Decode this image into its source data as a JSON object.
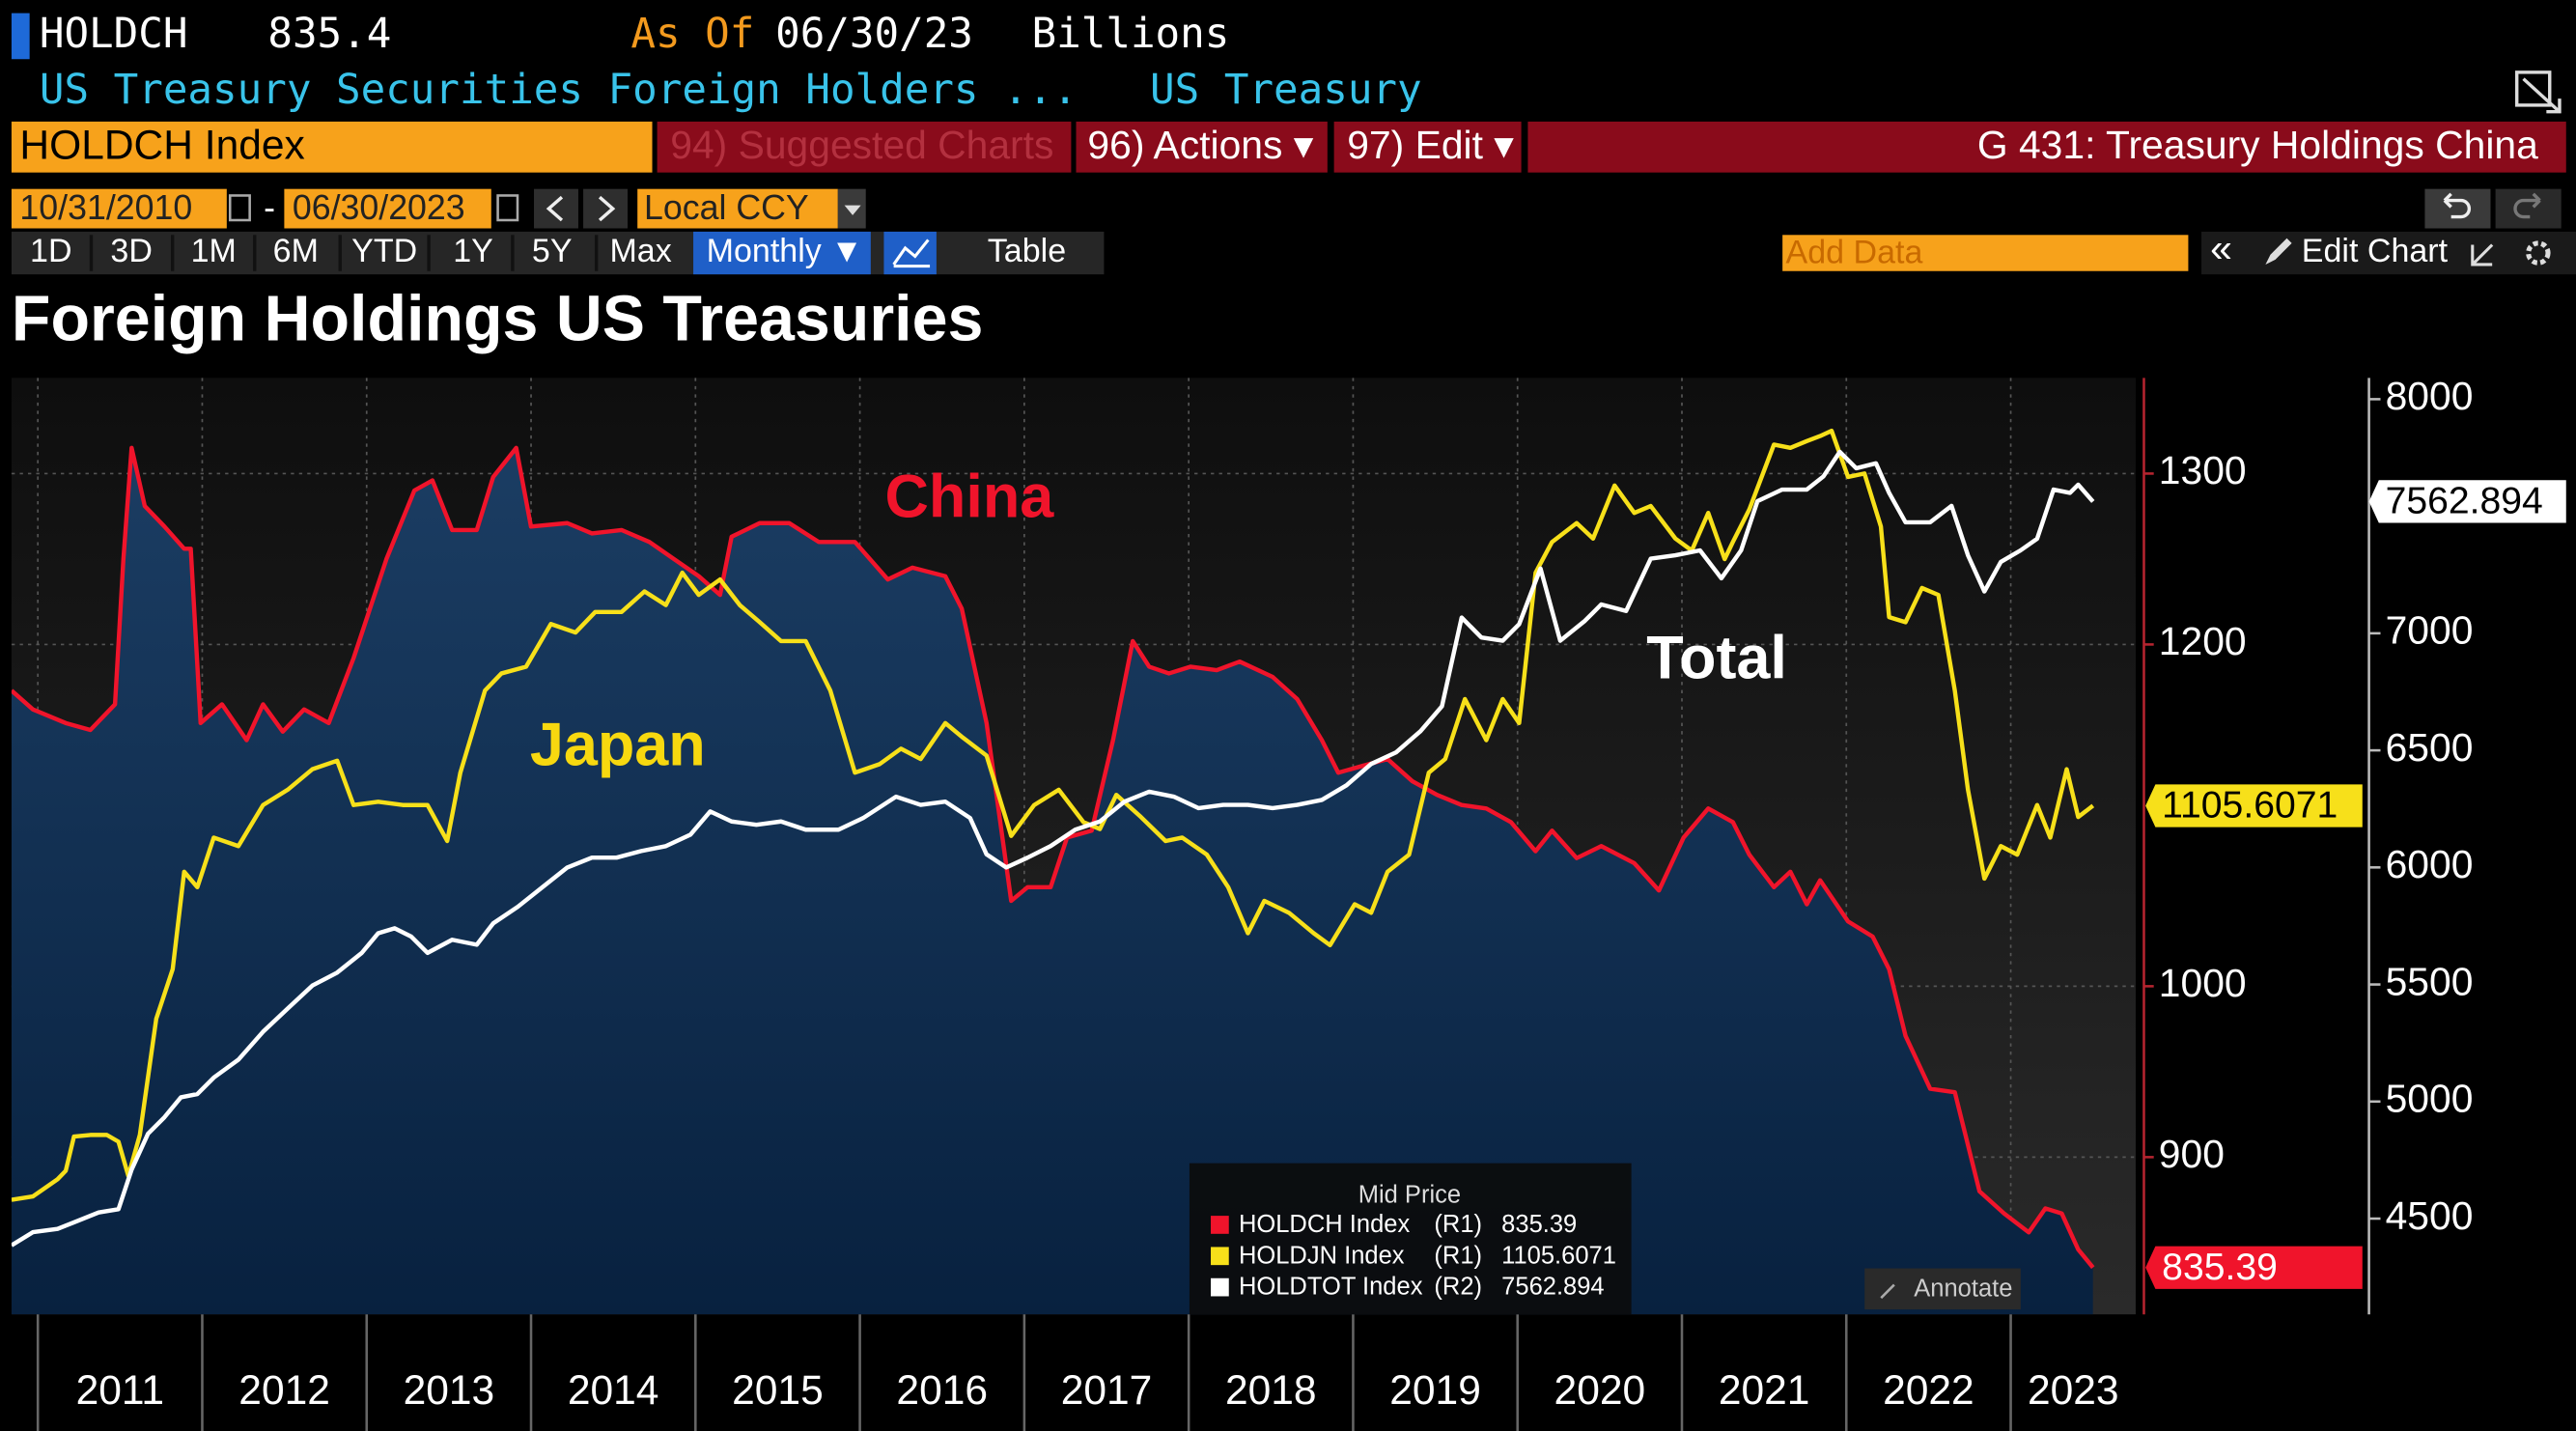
{
  "header": {
    "ticker": "HOLDCH",
    "price": "835.4",
    "as_of_label": "As Of",
    "as_of_date": "06/30/23",
    "units": "Billions",
    "description": "US Treasury Securities Foreign Holders ...",
    "source": "US Treasury"
  },
  "menu": {
    "security": "HOLDCH Index",
    "suggested": "94) Suggested Charts",
    "actions": "96) Actions ▾",
    "edit": "97) Edit ▾",
    "page_title": "G 431: Treasury Holdings China"
  },
  "controls": {
    "start_date": "10/31/2010",
    "date_separator": "-",
    "end_date": "06/30/2023",
    "currency": "Local CCY",
    "ranges": [
      "1D",
      "3D",
      "1M",
      "6M",
      "YTD",
      "1Y",
      "5Y",
      "Max"
    ],
    "frequency": "Monthly ▼",
    "table": "Table",
    "add_data_placeholder": "Add Data",
    "collapse": "«",
    "edit_chart": "Edit Chart"
  },
  "chart_data": {
    "type": "line",
    "title": "Foreign Holdings US Treasuries",
    "annotations": [
      "China",
      "Japan",
      "Total"
    ],
    "legend_title": "Mid Price",
    "annotate": "Annotate",
    "xlim": [
      2010.84,
      2023.76
    ],
    "xticks": [
      2011,
      2012,
      2013,
      2014,
      2015,
      2016,
      2017,
      2018,
      2019,
      2020,
      2021,
      2022,
      2023
    ],
    "ylim": [
      808,
      1356
    ],
    "yticks": [
      900,
      1000,
      1200,
      1300
    ],
    "y2lim": [
      4091,
      8091
    ],
    "y2ticks": [
      4500,
      5000,
      5500,
      6000,
      6500,
      7000,
      8000
    ],
    "grid": true,
    "series": [
      {
        "name": "HOLDCH Index",
        "axis_label": "(R1)",
        "color": "#f0142b",
        "axis": "y",
        "area": true,
        "x": [
          2010.84,
          2010.97,
          2011.17,
          2011.32,
          2011.47,
          2011.52,
          2011.57,
          2011.65,
          2011.77,
          2011.89,
          2011.93,
          2011.99,
          2012.12,
          2012.27,
          2012.37,
          2012.49,
          2012.62,
          2012.77,
          2012.92,
          2013.12,
          2013.29,
          2013.4,
          2013.52,
          2013.67,
          2013.77,
          2013.91,
          2014.0,
          2014.22,
          2014.37,
          2014.55,
          2014.72,
          2014.87,
          2015.02,
          2015.15,
          2015.22,
          2015.39,
          2015.57,
          2015.75,
          2015.97,
          2016.17,
          2016.32,
          2016.52,
          2016.62,
          2016.77,
          2016.92,
          2017.02,
          2017.16,
          2017.26,
          2017.41,
          2017.54,
          2017.66,
          2017.76,
          2017.88,
          2018.01,
          2018.17,
          2018.31,
          2018.51,
          2018.66,
          2018.81,
          2018.91,
          2019.06,
          2019.21,
          2019.36,
          2019.51,
          2019.66,
          2019.81,
          2019.96,
          2020.11,
          2020.21,
          2020.36,
          2020.51,
          2020.71,
          2020.86,
          2021.01,
          2021.16,
          2021.31,
          2021.41,
          2021.56,
          2021.66,
          2021.76,
          2021.84,
          2022.01,
          2022.16,
          2022.26,
          2022.36,
          2022.51,
          2022.66,
          2022.81,
          2022.96,
          2023.11,
          2023.21,
          2023.31,
          2023.41,
          2023.5
        ],
        "values": [
          1173,
          1162,
          1154,
          1150,
          1165,
          1250,
          1315,
          1281,
          1269,
          1256,
          1256,
          1154,
          1165,
          1144,
          1165,
          1149,
          1162,
          1154,
          1192,
          1250,
          1290,
          1296,
          1267,
          1267,
          1298,
          1315,
          1269,
          1271,
          1265,
          1267,
          1260,
          1250,
          1240,
          1229,
          1263,
          1271,
          1271,
          1260,
          1260,
          1238,
          1245,
          1240,
          1221,
          1154,
          1050,
          1058,
          1058,
          1087,
          1091,
          1144,
          1202,
          1187,
          1183,
          1187,
          1185,
          1190,
          1181,
          1168,
          1144,
          1125,
          1129,
          1133,
          1120,
          1112,
          1106,
          1104,
          1096,
          1079,
          1091,
          1075,
          1082,
          1072,
          1056,
          1087,
          1104,
          1096,
          1077,
          1058,
          1067,
          1048,
          1062,
          1038,
          1029,
          1010,
          971,
          940,
          938,
          880,
          867,
          856,
          870,
          867,
          846,
          835.39
        ]
      },
      {
        "name": "HOLDJN Index",
        "axis_label": "(R1)",
        "color": "#f7e01a",
        "axis": "y",
        "x": [
          2010.84,
          2010.97,
          2011.12,
          2011.17,
          2011.22,
          2011.32,
          2011.42,
          2011.49,
          2011.55,
          2011.62,
          2011.72,
          2011.82,
          2011.89,
          2011.97,
          2012.07,
          2012.22,
          2012.37,
          2012.52,
          2012.67,
          2012.82,
          2012.92,
          2013.07,
          2013.22,
          2013.37,
          2013.49,
          2013.57,
          2013.72,
          2013.82,
          2013.97,
          2014.12,
          2014.27,
          2014.39,
          2014.55,
          2014.69,
          2014.82,
          2014.92,
          2015.02,
          2015.15,
          2015.27,
          2015.39,
          2015.52,
          2015.67,
          2015.82,
          2015.97,
          2016.12,
          2016.25,
          2016.37,
          2016.52,
          2016.62,
          2016.77,
          2016.92,
          2017.06,
          2017.21,
          2017.36,
          2017.46,
          2017.56,
          2017.71,
          2017.86,
          2017.96,
          2018.11,
          2018.24,
          2018.36,
          2018.46,
          2018.61,
          2018.76,
          2018.86,
          2019.01,
          2019.11,
          2019.21,
          2019.34,
          2019.46,
          2019.56,
          2019.68,
          2019.81,
          2019.91,
          2020.01,
          2020.11,
          2020.21,
          2020.36,
          2020.46,
          2020.59,
          2020.71,
          2020.81,
          2020.96,
          2021.06,
          2021.16,
          2021.26,
          2021.31,
          2021.41,
          2021.56,
          2021.66,
          2021.76,
          2021.84,
          2021.91,
          2022.01,
          2022.11,
          2022.21,
          2022.26,
          2022.36,
          2022.46,
          2022.56,
          2022.66,
          2022.74,
          2022.84,
          2022.94,
          2023.04,
          2023.16,
          2023.24,
          2023.34,
          2023.41,
          2023.5
        ],
        "values": [
          875,
          877,
          887,
          892,
          912,
          913,
          913,
          909,
          889,
          913,
          981,
          1010,
          1067,
          1058,
          1087,
          1082,
          1106,
          1115,
          1127,
          1132,
          1106,
          1108,
          1106,
          1106,
          1085,
          1125,
          1173,
          1183,
          1187,
          1212,
          1207,
          1219,
          1219,
          1231,
          1223,
          1242,
          1229,
          1238,
          1223,
          1213,
          1202,
          1202,
          1173,
          1125,
          1130,
          1139,
          1133,
          1154,
          1146,
          1135,
          1088,
          1106,
          1115,
          1096,
          1092,
          1112,
          1099,
          1085,
          1087,
          1077,
          1058,
          1031,
          1050,
          1043,
          1031,
          1024,
          1048,
          1043,
          1067,
          1077,
          1125,
          1133,
          1168,
          1144,
          1168,
          1154,
          1242,
          1260,
          1271,
          1262,
          1293,
          1277,
          1281,
          1262,
          1255,
          1277,
          1250,
          1260,
          1279,
          1317,
          1315,
          1319,
          1322,
          1325,
          1298,
          1300,
          1269,
          1216,
          1213,
          1233,
          1229,
          1173,
          1115,
          1063,
          1082,
          1077,
          1106,
          1087,
          1127,
          1099,
          1105.6071
        ]
      },
      {
        "name": "HOLDTOT Index",
        "axis_label": "(R2)",
        "color": "#ffffff",
        "axis": "y2",
        "x": [
          2010.84,
          2010.97,
          2011.12,
          2011.22,
          2011.37,
          2011.49,
          2011.57,
          2011.67,
          2011.77,
          2011.87,
          2011.97,
          2012.07,
          2012.22,
          2012.37,
          2012.52,
          2012.67,
          2012.82,
          2012.97,
          2013.07,
          2013.17,
          2013.27,
          2013.37,
          2013.52,
          2013.67,
          2013.77,
          2013.92,
          2014.07,
          2014.22,
          2014.37,
          2014.52,
          2014.67,
          2014.82,
          2014.97,
          2015.09,
          2015.22,
          2015.37,
          2015.52,
          2015.67,
          2015.87,
          2016.02,
          2016.22,
          2016.37,
          2016.52,
          2016.67,
          2016.77,
          2016.89,
          2017.02,
          2017.16,
          2017.31,
          2017.46,
          2017.61,
          2017.76,
          2017.91,
          2018.06,
          2018.21,
          2018.36,
          2018.51,
          2018.66,
          2018.81,
          2018.96,
          2019.11,
          2019.26,
          2019.41,
          2019.54,
          2019.66,
          2019.78,
          2019.91,
          2020.01,
          2020.14,
          2020.26,
          2020.41,
          2020.51,
          2020.66,
          2020.81,
          2020.96,
          2021.11,
          2021.24,
          2021.36,
          2021.46,
          2021.61,
          2021.76,
          2021.86,
          2021.96,
          2022.06,
          2022.18,
          2022.26,
          2022.36,
          2022.51,
          2022.64,
          2022.74,
          2022.84,
          2022.94,
          2023.06,
          2023.16,
          2023.26,
          2023.36,
          2023.41,
          2023.5
        ],
        "values": [
          4386,
          4442,
          4456,
          4484,
          4526,
          4540,
          4709,
          4863,
          4933,
          5018,
          5032,
          5102,
          5179,
          5298,
          5397,
          5495,
          5551,
          5635,
          5719,
          5740,
          5705,
          5635,
          5691,
          5670,
          5761,
          5832,
          5916,
          6000,
          6042,
          6042,
          6070,
          6091,
          6140,
          6239,
          6196,
          6182,
          6196,
          6161,
          6161,
          6211,
          6302,
          6267,
          6281,
          6211,
          6056,
          6000,
          6042,
          6091,
          6161,
          6196,
          6281,
          6323,
          6302,
          6253,
          6267,
          6267,
          6253,
          6267,
          6288,
          6351,
          6442,
          6491,
          6582,
          6688,
          7067,
          6982,
          6968,
          7039,
          7277,
          6968,
          7053,
          7123,
          7095,
          7319,
          7333,
          7354,
          7235,
          7354,
          7565,
          7614,
          7614,
          7670,
          7775,
          7705,
          7726,
          7600,
          7474,
          7474,
          7544,
          7333,
          7179,
          7305,
          7354,
          7404,
          7614,
          7600,
          7635,
          7562.894
        ]
      }
    ]
  }
}
